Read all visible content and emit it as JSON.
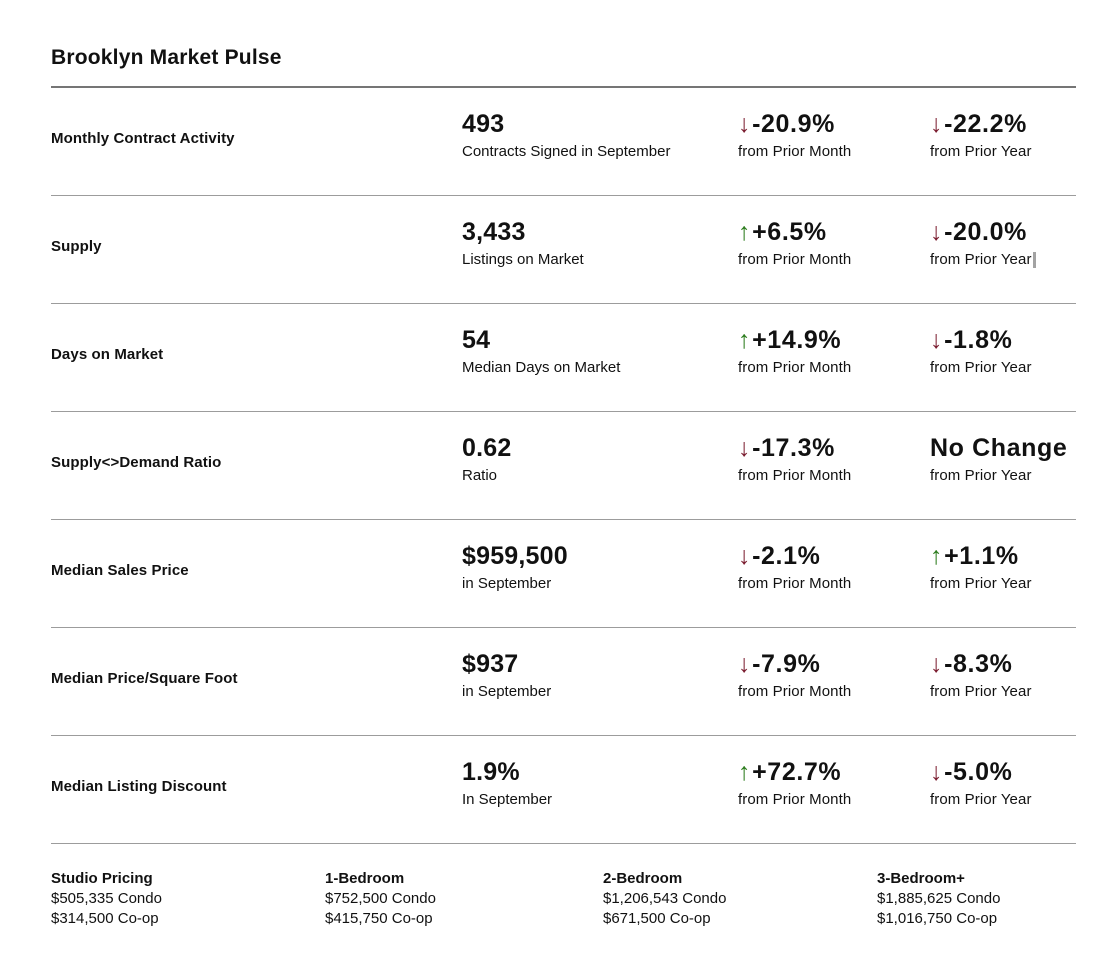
{
  "page": {
    "title": "Brooklyn Market Pulse"
  },
  "colors": {
    "up_arrow": "#2e7d1f",
    "down_arrow": "#7b1e31",
    "text": "#111111",
    "divider": "#9c9c9c",
    "title_rule": "#757575",
    "text_cursor": "#a3a3a3"
  },
  "icons": {
    "up": "↑",
    "down": "↓"
  },
  "metrics": [
    {
      "label": "Monthly Contract Activity",
      "value": "493",
      "value_sub": "Contracts Signed in September",
      "prior_month": {
        "direction": "down",
        "arrow": "↓",
        "value": "-20.9%",
        "sub": "from Prior Month"
      },
      "prior_year": {
        "direction": "down",
        "arrow": "↓",
        "value": "-22.2%",
        "sub": "from Prior Year"
      }
    },
    {
      "label": "Supply",
      "value": "3,433",
      "value_sub": "Listings on Market",
      "prior_month": {
        "direction": "up",
        "arrow": "↑",
        "value": "+6.5%",
        "sub": "from Prior Month"
      },
      "prior_year": {
        "direction": "down",
        "arrow": "↓",
        "value": "-20.0%",
        "sub": "from Prior Year",
        "cursor": true
      }
    },
    {
      "label": "Days on Market",
      "value": "54",
      "value_sub": "Median Days on Market",
      "prior_month": {
        "direction": "up",
        "arrow": "↑",
        "value": "+14.9%",
        "sub": "from Prior Month"
      },
      "prior_year": {
        "direction": "down",
        "arrow": "↓",
        "value": "-1.8%",
        "sub": "from Prior Year"
      }
    },
    {
      "label": "Supply<>Demand Ratio",
      "value": "0.62",
      "value_sub": "Ratio",
      "prior_month": {
        "direction": "down",
        "arrow": "↓",
        "value": "-17.3%",
        "sub": "from Prior Month"
      },
      "prior_year": {
        "direction": "none",
        "arrow": "",
        "value": "No Change",
        "sub": "from Prior Year"
      }
    },
    {
      "label": "Median Sales Price",
      "value": "$959,500",
      "value_sub": "in September",
      "prior_month": {
        "direction": "down",
        "arrow": "↓",
        "value": "-2.1%",
        "sub": "from Prior Month"
      },
      "prior_year": {
        "direction": "up",
        "arrow": "↑",
        "value": "+1.1%",
        "sub": "from Prior Year"
      }
    },
    {
      "label": "Median Price/Square Foot",
      "value": "$937",
      "value_sub": "in September",
      "prior_month": {
        "direction": "down",
        "arrow": "↓",
        "value": "-7.9%",
        "sub": "from Prior Month"
      },
      "prior_year": {
        "direction": "down",
        "arrow": "↓",
        "value": "-8.3%",
        "sub": "from Prior Year"
      }
    },
    {
      "label": "Median Listing Discount",
      "value": "1.9%",
      "value_sub": "In September",
      "prior_month": {
        "direction": "up",
        "arrow": "↑",
        "value": "+72.7%",
        "sub": "from Prior Month"
      },
      "prior_year": {
        "direction": "down",
        "arrow": "↓",
        "value": "-5.0%",
        "sub": "from Prior Year"
      }
    }
  ],
  "pricing": [
    {
      "label": "Studio Pricing",
      "condo": "$505,335 Condo",
      "coop": "$314,500 Co-op"
    },
    {
      "label": "1-Bedroom",
      "condo": "$752,500 Condo",
      "coop": "$415,750 Co-op"
    },
    {
      "label": "2-Bedroom",
      "condo": "$1,206,543 Condo",
      "coop": "$671,500 Co-op"
    },
    {
      "label": "3-Bedroom+",
      "condo": "$1,885,625 Condo",
      "coop": "$1,016,750 Co-op"
    }
  ]
}
